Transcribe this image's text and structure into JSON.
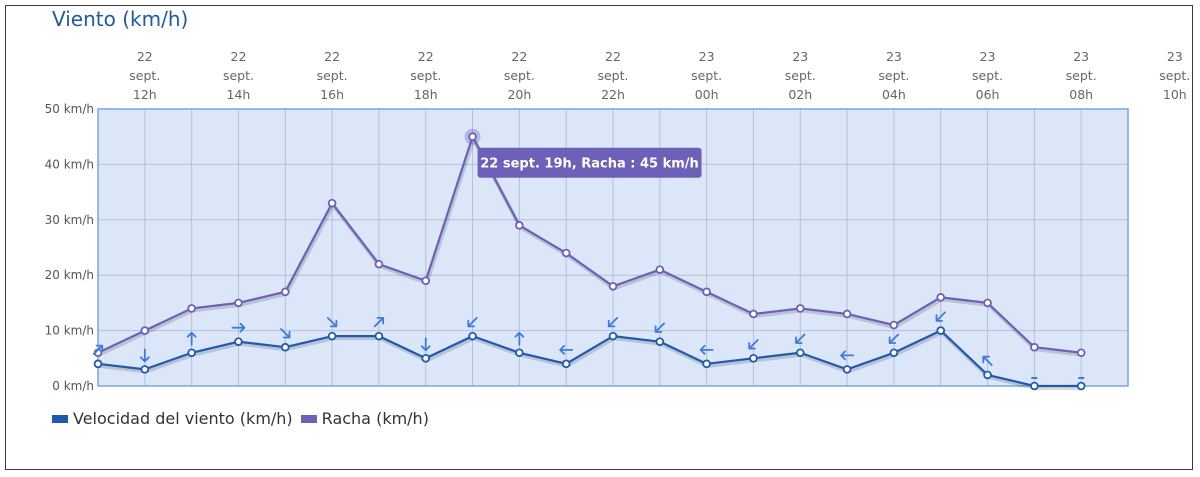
{
  "title": "Viento (km/h)",
  "colors": {
    "wind": "#1f5ab0",
    "gust": "#6c60b8",
    "plot_bg": "#dbe6f9",
    "arrow": "#3d7be0",
    "tooltip": "#6c60b8"
  },
  "legend": [
    {
      "name": "Velocidad del viento (km/h)",
      "color": "#1f5ab0"
    },
    {
      "name": "Racha (km/h)",
      "color": "#6c60b8"
    }
  ],
  "tooltip": {
    "text": "22 sept. 19h, Racha : 45 km/h",
    "index": 8,
    "series": "Racha"
  },
  "chart_data": {
    "type": "line",
    "title": "Viento (km/h)",
    "ylim": [
      0,
      50
    ],
    "y_ticks": [
      "0 km/h",
      "10 km/h",
      "20 km/h",
      "30 km/h",
      "40 km/h",
      "50 km/h"
    ],
    "x_hours": [
      11,
      12,
      13,
      14,
      15,
      16,
      17,
      18,
      19,
      20,
      21,
      22,
      23,
      24,
      25,
      26,
      27,
      28,
      29,
      30,
      31,
      32
    ],
    "x_tick_labels": [
      [
        "22",
        "sept.",
        "12h"
      ],
      [
        "22",
        "sept.",
        "14h"
      ],
      [
        "22",
        "sept.",
        "16h"
      ],
      [
        "22",
        "sept.",
        "18h"
      ],
      [
        "22",
        "sept.",
        "20h"
      ],
      [
        "22",
        "sept.",
        "22h"
      ],
      [
        "23",
        "sept.",
        "00h"
      ],
      [
        "23",
        "sept.",
        "02h"
      ],
      [
        "23",
        "sept.",
        "04h"
      ],
      [
        "23",
        "sept.",
        "06h"
      ],
      [
        "23",
        "sept.",
        "08h"
      ],
      [
        "23",
        "sept.",
        "10h"
      ]
    ],
    "series": [
      {
        "name": "Velocidad del viento (km/h)",
        "values": [
          4,
          3,
          6,
          8,
          7,
          9,
          9,
          5,
          9,
          6,
          4,
          9,
          8,
          4,
          5,
          6,
          3,
          6,
          10,
          2,
          0,
          0
        ]
      },
      {
        "name": "Racha (km/h)",
        "values": [
          6,
          10,
          14,
          15,
          17,
          33,
          22,
          19,
          45,
          29,
          24,
          18,
          21,
          17,
          13,
          14,
          13,
          11,
          16,
          15,
          7,
          6
        ]
      }
    ],
    "wind_direction_arrows_deg": [
      45,
      180,
      0,
      90,
      135,
      135,
      45,
      180,
      225,
      0,
      270,
      225,
      225,
      270,
      225,
      225,
      270,
      225,
      225,
      315,
      null,
      null
    ],
    "grid": true
  }
}
